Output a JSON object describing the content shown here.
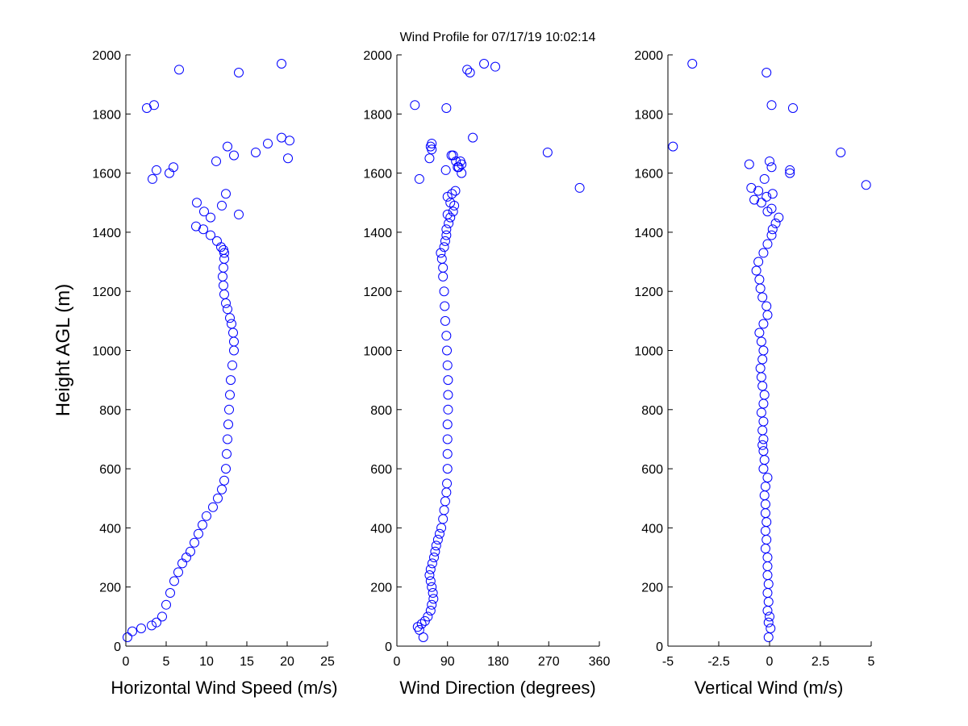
{
  "chart_data": {
    "type": "scatter",
    "title": "Wind Profile for  07/17/19 10:02:14",
    "ylabel": "Height AGL (m)",
    "ylim": [
      0,
      2000
    ],
    "yticks": [
      0,
      200,
      400,
      600,
      800,
      1000,
      1200,
      1400,
      1600,
      1800,
      2000
    ],
    "yticklabels": [
      "0",
      "200",
      "400",
      "600",
      "800",
      "1000",
      "1200",
      "1400",
      "1600",
      "1800",
      "2000"
    ],
    "marker": "circle",
    "marker_color": "#0000ff",
    "grid": false,
    "subplots": [
      {
        "xlabel": "Horizontal Wind Speed (m/s)",
        "xlim": [
          0,
          25
        ],
        "xticks": [
          0,
          5,
          10,
          15,
          20,
          25
        ],
        "xticklabels": [
          "0",
          "5",
          "10",
          "15",
          "20",
          "25"
        ],
        "series": [
          {
            "x": [
              0.2,
              0.8,
              1.9,
              3.2,
              3.8,
              4.5,
              5.0,
              5.5,
              6.0,
              6.5,
              7.0,
              7.5,
              8.0,
              8.5,
              9.0,
              9.5,
              10.0,
              10.8,
              11.4,
              11.9,
              12.2,
              12.4,
              12.5,
              12.6,
              12.7,
              12.8,
              12.9,
              13.0,
              13.2,
              13.4,
              13.4,
              13.3,
              13.1,
              12.9,
              12.6,
              12.4,
              12.2,
              12.1,
              12.0,
              12.1,
              12.2,
              12.2,
              12.1,
              11.8,
              11.3,
              10.5,
              9.6,
              8.7,
              10.5,
              14.0,
              9.7,
              11.9,
              8.8,
              12.4,
              11.2,
              3.3,
              3.8,
              5.4,
              5.9,
              12.6,
              13.4,
              16.1,
              17.6,
              19.3,
              20.1,
              20.3,
              2.6,
              3.5,
              6.6,
              14.0,
              19.3
            ],
            "y": [
              30,
              50,
              60,
              70,
              80,
              100,
              140,
              180,
              220,
              250,
              280,
              300,
              320,
              350,
              380,
              410,
              440,
              470,
              500,
              530,
              560,
              600,
              650,
              700,
              750,
              800,
              850,
              900,
              950,
              1000,
              1030,
              1060,
              1090,
              1110,
              1140,
              1160,
              1190,
              1220,
              1250,
              1280,
              1310,
              1330,
              1340,
              1350,
              1370,
              1390,
              1410,
              1420,
              1450,
              1460,
              1470,
              1490,
              1500,
              1530,
              1640,
              1580,
              1610,
              1600,
              1620,
              1690,
              1660,
              1670,
              1700,
              1720,
              1650,
              1710,
              1820,
              1830,
              1950,
              1940,
              1970
            ]
          }
        ]
      },
      {
        "xlabel": "Wind Direction (degrees)",
        "xlim": [
          0,
          360
        ],
        "xticks": [
          0,
          90,
          180,
          270,
          360
        ],
        "xticklabels": [
          "0",
          "90",
          "180",
          "270",
          "360"
        ],
        "series": [
          {
            "x": [
              47,
              40,
              37,
              44,
              50,
              55,
              60,
              62,
              65,
              64,
              62,
              60,
              58,
              60,
              63,
              66,
              68,
              70,
              73,
              76,
              79,
              82,
              84,
              86,
              88,
              89,
              90,
              90,
              90,
              90,
              91,
              91,
              91,
              90,
              89,
              88,
              86,
              85,
              84,
              82,
              82,
              80,
              78,
              84,
              86,
              88,
              88,
              92,
              95,
              100,
              102,
              95,
              90,
              98,
              90,
              104,
              115,
              110,
              105,
              100,
              40,
              87,
              108,
              113,
              115,
              97,
              62,
              60,
              62,
              58,
              135,
              268,
              325,
              32,
              88,
              125,
              130,
              155,
              175
            ],
            "y": [
              30,
              55,
              65,
              75,
              85,
              100,
              120,
              140,
              160,
              180,
              200,
              220,
              240,
              260,
              280,
              300,
              320,
              340,
              360,
              380,
              400,
              430,
              460,
              490,
              520,
              550,
              600,
              650,
              700,
              750,
              800,
              850,
              900,
              950,
              1000,
              1050,
              1100,
              1150,
              1200,
              1250,
              1280,
              1310,
              1330,
              1350,
              1370,
              1390,
              1410,
              1430,
              1450,
              1470,
              1490,
              1500,
              1520,
              1530,
              1460,
              1540,
              1600,
              1620,
              1640,
              1660,
              1580,
              1610,
              1620,
              1640,
              1630,
              1660,
              1680,
              1690,
              1700,
              1650,
              1720,
              1670,
              1550,
              1830,
              1820,
              1950,
              1940,
              1970,
              1960
            ]
          }
        ]
      },
      {
        "xlabel": "Vertical Wind (m/s)",
        "xlim": [
          -5,
          5
        ],
        "xticks": [
          -5,
          -2.5,
          0,
          2.5,
          5
        ],
        "xticklabels": [
          "-5",
          "-2.5",
          "0",
          "2.5",
          "5"
        ],
        "series": [
          {
            "x": [
              -0.05,
              0.05,
              -0.05,
              0.0,
              -0.1,
              -0.05,
              -0.1,
              -0.05,
              -0.1,
              -0.1,
              -0.1,
              -0.2,
              -0.15,
              -0.2,
              -0.15,
              -0.2,
              -0.2,
              -0.25,
              -0.2,
              -0.1,
              -0.3,
              -0.25,
              -0.3,
              -0.35,
              -0.3,
              -0.35,
              -0.3,
              -0.4,
              -0.3,
              -0.25,
              -0.35,
              -0.4,
              -0.45,
              -0.35,
              -0.3,
              -0.4,
              -0.5,
              -0.3,
              -0.1,
              -0.15,
              -0.35,
              -0.45,
              -0.5,
              -0.65,
              -0.55,
              -0.3,
              -0.1,
              0.1,
              0.15,
              0.45,
              0.3,
              -0.1,
              0.1,
              -0.4,
              -0.75,
              -0.15,
              0.15,
              -0.9,
              -0.55,
              -0.25,
              1.0,
              0.1,
              0.0,
              -1.0,
              1.0,
              -4.75,
              3.5,
              4.75,
              -3.8,
              0.1,
              1.15,
              -0.15
            ],
            "y": [
              30,
              60,
              80,
              100,
              120,
              150,
              180,
              210,
              240,
              270,
              300,
              330,
              360,
              390,
              420,
              450,
              480,
              510,
              540,
              570,
              600,
              630,
              660,
              680,
              700,
              730,
              760,
              790,
              820,
              850,
              880,
              910,
              940,
              970,
              1000,
              1030,
              1060,
              1090,
              1120,
              1150,
              1180,
              1210,
              1240,
              1270,
              1300,
              1330,
              1360,
              1390,
              1410,
              1450,
              1430,
              1470,
              1480,
              1500,
              1510,
              1520,
              1530,
              1550,
              1540,
              1580,
              1600,
              1620,
              1640,
              1630,
              1610,
              1690,
              1670,
              1560,
              1970,
              1830,
              1820,
              1940
            ]
          }
        ]
      }
    ]
  }
}
